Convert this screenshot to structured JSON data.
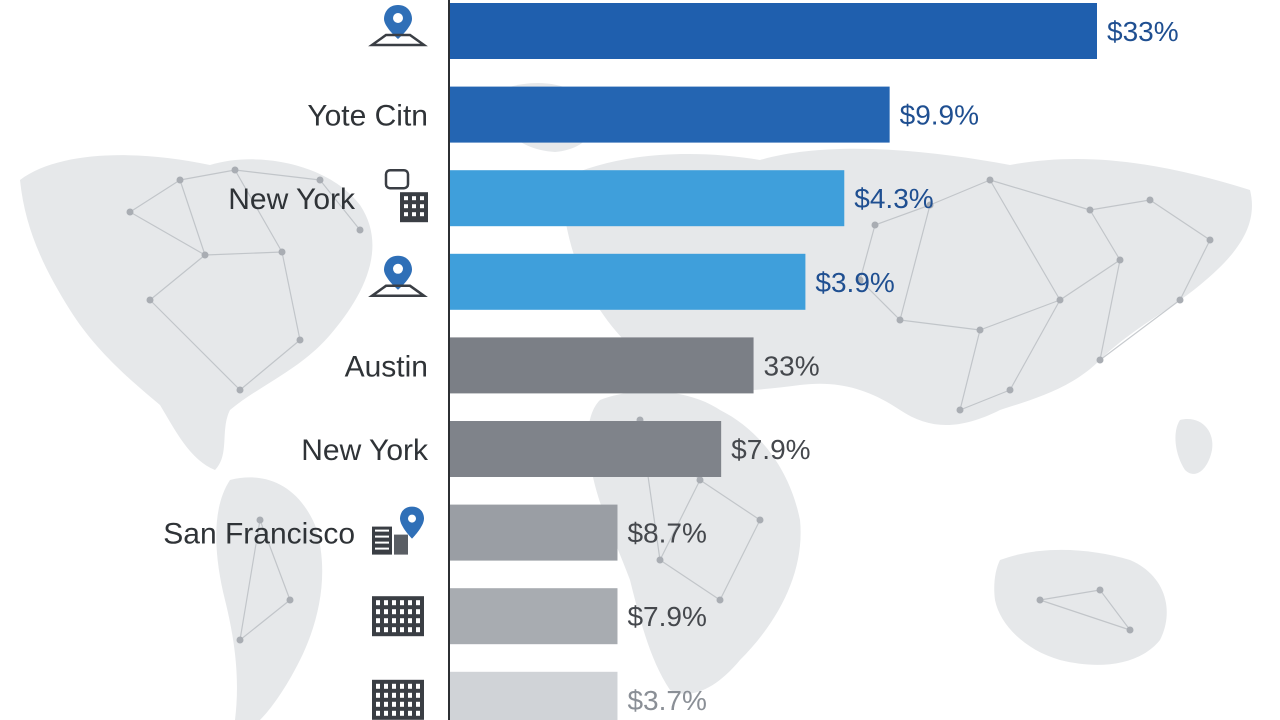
{
  "chart_data": {
    "type": "bar",
    "orientation": "horizontal",
    "categories": [
      "",
      "Yote Citn",
      "New York",
      "",
      "Austin",
      "New York",
      "San Francisco",
      "",
      ""
    ],
    "value_labels": [
      "$33%",
      "$9.9%",
      "$4.3%",
      "$3.9%",
      "33%",
      "$7.9%",
      "$8.7%",
      "$7.9%",
      "$3.7%"
    ],
    "values": [
      100,
      68,
      61,
      55,
      47,
      42,
      26,
      26,
      26
    ],
    "xlim": [
      0,
      100
    ],
    "grid": false,
    "legend": "none",
    "bar_colors": [
      "#1f5fae",
      "#2465b2",
      "#3f9fdb",
      "#3f9fdb",
      "#7b7f86",
      "#7f838a",
      "#9a9ea4",
      "#a8acb1",
      "#d0d3d7"
    ],
    "label_colors": [
      "#1f4f91",
      "#1f4f91",
      "#1f4f91",
      "#1f4f91",
      "#45484d",
      "#45484d",
      "#45484d",
      "#45484d",
      "#8a8f96"
    ],
    "row_icons": [
      "map-pin-icon",
      "",
      "building-chat-icon",
      "map-pin-icon",
      "",
      "",
      "city-pin-icon",
      "building-icon",
      "building-icon"
    ]
  },
  "theme": {
    "background": "#ffffff",
    "map_color": "#e6e8ea",
    "network_color": "#b9bdc2",
    "axis_color": "#2c2f33",
    "pin_color": "#2f6fb7"
  }
}
